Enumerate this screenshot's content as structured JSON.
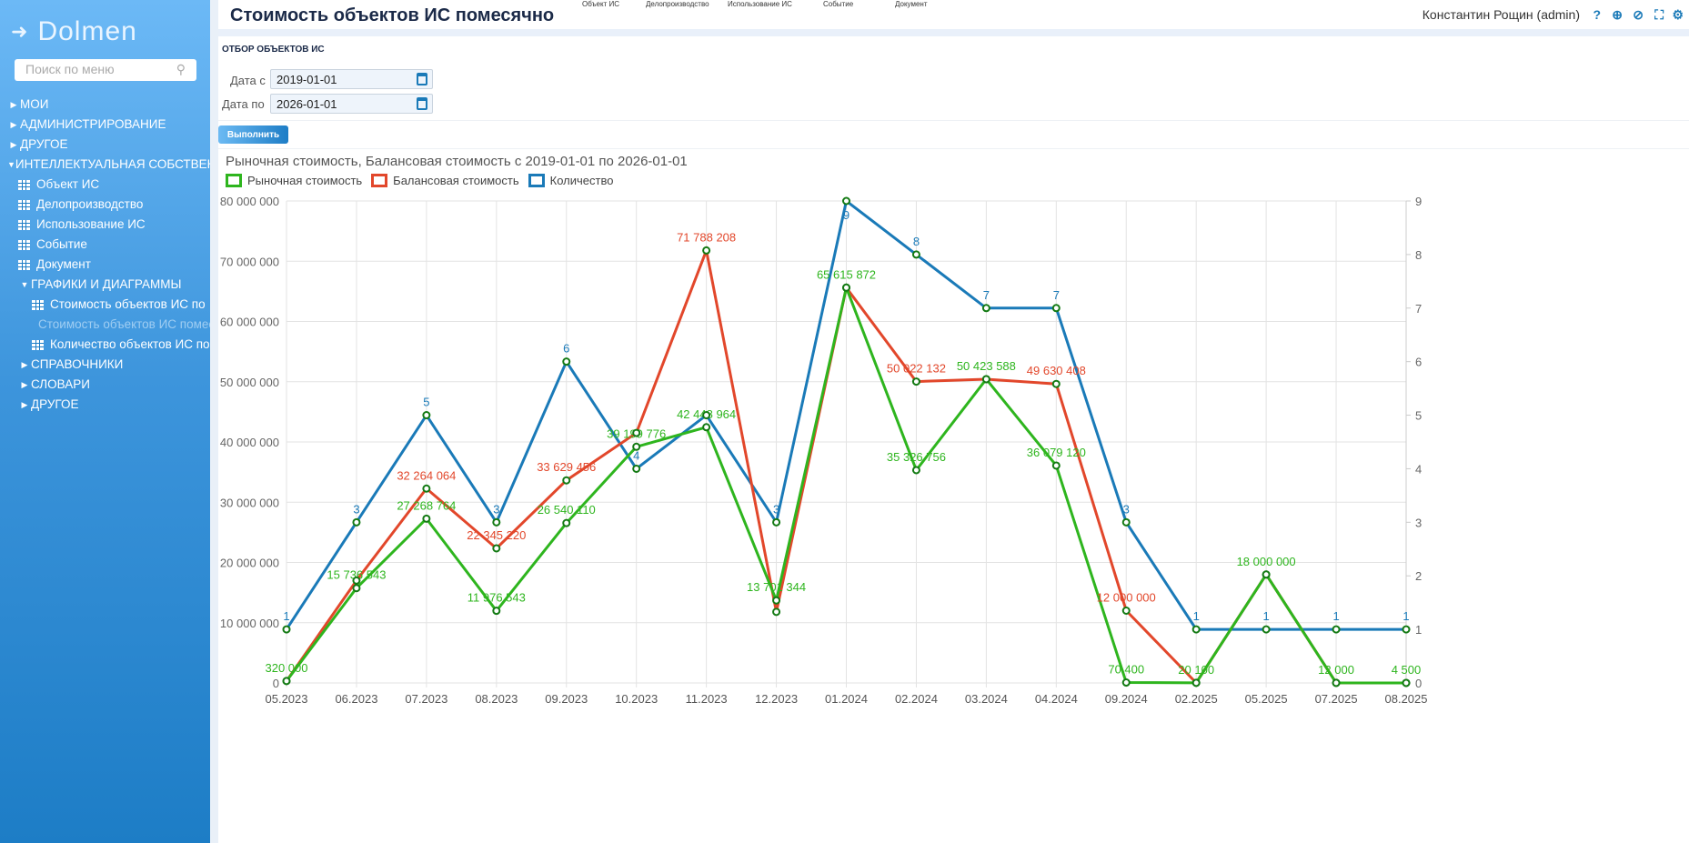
{
  "sidebar": {
    "logo": "Dolmen",
    "search_placeholder": "Поиск по меню",
    "items": [
      {
        "label": "МОИ",
        "level": 0,
        "caret": "right"
      },
      {
        "label": "АДМИНИСТРИРОВАНИЕ",
        "level": 0,
        "caret": "right"
      },
      {
        "label": "ДРУГОЕ",
        "level": 0,
        "caret": "right"
      },
      {
        "label": "ИНТЕЛЛЕКТУАЛЬНАЯ СОБСТВЕННОСТЬ",
        "level": 0,
        "caret": "down"
      },
      {
        "label": "Объект ИС",
        "level": 1,
        "icon": "grid"
      },
      {
        "label": "Делопроизводство",
        "level": 1,
        "icon": "grid"
      },
      {
        "label": "Использование ИС",
        "level": 1,
        "icon": "grid"
      },
      {
        "label": "Событие",
        "level": 1,
        "icon": "grid"
      },
      {
        "label": "Документ",
        "level": 1,
        "icon": "grid"
      },
      {
        "label": "ГРАФИКИ И ДИАГРАММЫ",
        "level": 1,
        "caret": "down"
      },
      {
        "label": "Стоимость объектов ИС по",
        "level": 2,
        "icon": "grid"
      },
      {
        "label": "Стоимость объектов ИС помесячно",
        "level": 2,
        "icon": "grid",
        "active": true
      },
      {
        "label": "Количество объектов ИС по",
        "level": 2,
        "icon": "grid"
      },
      {
        "label": "СПРАВОЧНИКИ",
        "level": 1,
        "caret": "right"
      },
      {
        "label": "СЛОВАРИ",
        "level": 1,
        "caret": "right"
      },
      {
        "label": "ДРУГОЕ",
        "level": 1,
        "caret": "right"
      }
    ]
  },
  "header": {
    "title": "Стоимость объектов ИС помесячно",
    "top_nav": [
      "Объект ИС",
      "Делопроизводство",
      "Использование ИС",
      "Событие",
      "Документ"
    ],
    "user": "Константин Рощин (admin)",
    "icons": [
      "help-icon",
      "zoom-icon",
      "eye-off-icon",
      "fullscreen-icon",
      "gear-icon"
    ]
  },
  "filter": {
    "title": "ОТБОР ОБЪЕКТОВ ИС",
    "date_from_label": "Дата с",
    "date_from": "2019-01-01",
    "date_to_label": "Дата по",
    "date_to": "2026-01-01",
    "run_label": "Выполнить"
  },
  "chart_data": {
    "type": "line",
    "title": "Рыночная стоимость, Балансовая стоимость с 2019-01-01 по 2026-01-01",
    "categories": [
      "05.2023",
      "06.2023",
      "07.2023",
      "08.2023",
      "09.2023",
      "10.2023",
      "11.2023",
      "12.2023",
      "01.2024",
      "02.2024",
      "03.2024",
      "04.2024",
      "09.2024",
      "02.2025",
      "05.2025",
      "07.2025",
      "08.2025"
    ],
    "series": [
      {
        "name": "Рыночная стоимость",
        "color": "#2eb51e",
        "axis": "left",
        "values": [
          320000,
          15736543,
          27268764,
          11976543,
          26540110,
          39199776,
          42448964,
          13701344,
          65615872,
          35326756,
          50423588,
          36079120,
          70400,
          20100,
          18000000,
          12000,
          4500
        ],
        "labels": [
          "320 000",
          "15 736 543",
          "27 268 764",
          "11 976 543",
          "26 540 110",
          "39 199 776",
          "42 448 964",
          "13 701 344",
          "65 615 872",
          "35 326 756",
          "50 423 588",
          "36 079 120",
          "70 400",
          "20 100",
          "18 000 000",
          "12 000",
          "4 500"
        ]
      },
      {
        "name": "Балансовая стоимость",
        "color": "#e2472b",
        "axis": "left",
        "values": [
          320000,
          17000000,
          32264064,
          22345220,
          33629456,
          41500000,
          71788208,
          11800000,
          65615872,
          50022132,
          50423588,
          49630408,
          12000000,
          20100,
          18000000,
          12000,
          4500
        ],
        "labels": [
          "",
          "",
          "32 264 064",
          "22 345 220",
          "33 629 456",
          "",
          "71 788 208",
          "",
          "",
          "50 022 132",
          "",
          "49 630 408",
          "12 000 000",
          "",
          "",
          "",
          ""
        ]
      },
      {
        "name": "Количество",
        "color": "#1a7ab8",
        "axis": "right",
        "values": [
          1,
          3,
          5,
          3,
          6,
          4,
          5,
          3,
          9,
          8,
          7,
          7,
          3,
          1,
          1,
          1,
          1
        ],
        "labels": [
          "1",
          "3",
          "5",
          "3",
          "6",
          "4",
          "",
          "3",
          "9",
          "8",
          "7",
          "7",
          "3",
          "1",
          "1",
          "1",
          "1"
        ]
      }
    ],
    "y_left": {
      "min": 0,
      "max": 80000000,
      "ticks": [
        "0",
        "10 000 000",
        "20 000 000",
        "30 000 000",
        "40 000 000",
        "50 000 000",
        "60 000 000",
        "70 000 000",
        "80 000 000"
      ]
    },
    "y_right": {
      "min": 0,
      "max": 9,
      "ticks": [
        "0",
        "1",
        "2",
        "3",
        "4",
        "5",
        "6",
        "7",
        "8",
        "9"
      ]
    },
    "grid": true,
    "legend": "top-left"
  }
}
